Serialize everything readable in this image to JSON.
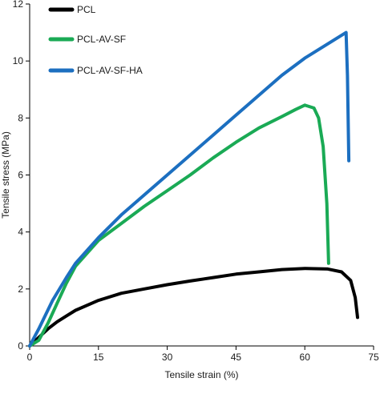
{
  "chart_data": {
    "type": "line",
    "xlabel": "Tensile strain (%)",
    "ylabel": "Tensile stress (MPa)",
    "xlim": [
      0,
      75
    ],
    "ylim": [
      0,
      12
    ],
    "x_ticks": [
      0,
      15,
      30,
      45,
      60,
      75
    ],
    "y_ticks": [
      0,
      2,
      4,
      6,
      8,
      10,
      12
    ],
    "x_tick_labels": [
      "0",
      "15",
      "30",
      "45",
      "60",
      "75"
    ],
    "y_tick_labels": [
      "0",
      "2",
      "4",
      "6",
      "8",
      "10",
      "12"
    ],
    "grid": false,
    "legend_position": "top-left",
    "series": [
      {
        "name": "PCL",
        "color": "#000000",
        "points": [
          [
            0,
            0
          ],
          [
            2,
            0.3
          ],
          [
            4,
            0.6
          ],
          [
            6,
            0.85
          ],
          [
            8,
            1.05
          ],
          [
            10,
            1.25
          ],
          [
            15,
            1.6
          ],
          [
            20,
            1.85
          ],
          [
            25,
            2.0
          ],
          [
            30,
            2.15
          ],
          [
            35,
            2.28
          ],
          [
            40,
            2.4
          ],
          [
            45,
            2.52
          ],
          [
            50,
            2.6
          ],
          [
            55,
            2.68
          ],
          [
            60,
            2.72
          ],
          [
            65,
            2.7
          ],
          [
            68,
            2.6
          ],
          [
            70,
            2.3
          ],
          [
            71,
            1.7
          ],
          [
            71.5,
            1.0
          ]
        ]
      },
      {
        "name": "PCL-AV-SF",
        "color": "#1aaa55",
        "points": [
          [
            0,
            0
          ],
          [
            2,
            0.2
          ],
          [
            4,
            0.8
          ],
          [
            6,
            1.5
          ],
          [
            8,
            2.2
          ],
          [
            10,
            2.8
          ],
          [
            15,
            3.7
          ],
          [
            20,
            4.3
          ],
          [
            25,
            4.9
          ],
          [
            30,
            5.45
          ],
          [
            35,
            6.0
          ],
          [
            40,
            6.6
          ],
          [
            45,
            7.15
          ],
          [
            50,
            7.65
          ],
          [
            55,
            8.05
          ],
          [
            58,
            8.3
          ],
          [
            60,
            8.45
          ],
          [
            62,
            8.35
          ],
          [
            63,
            8.0
          ],
          [
            64,
            7.0
          ],
          [
            64.8,
            5.0
          ],
          [
            65.2,
            2.9
          ]
        ]
      },
      {
        "name": "PCL-AV-SF-HA",
        "color": "#1c6fc0",
        "points": [
          [
            0,
            0
          ],
          [
            2,
            0.6
          ],
          [
            5,
            1.6
          ],
          [
            8,
            2.4
          ],
          [
            10,
            2.9
          ],
          [
            15,
            3.8
          ],
          [
            20,
            4.6
          ],
          [
            25,
            5.3
          ],
          [
            30,
            6.0
          ],
          [
            35,
            6.7
          ],
          [
            40,
            7.4
          ],
          [
            45,
            8.1
          ],
          [
            50,
            8.8
          ],
          [
            55,
            9.5
          ],
          [
            60,
            10.1
          ],
          [
            65,
            10.6
          ],
          [
            69,
            11.0
          ],
          [
            69.3,
            9.5
          ],
          [
            69.6,
            6.5
          ]
        ]
      }
    ]
  }
}
